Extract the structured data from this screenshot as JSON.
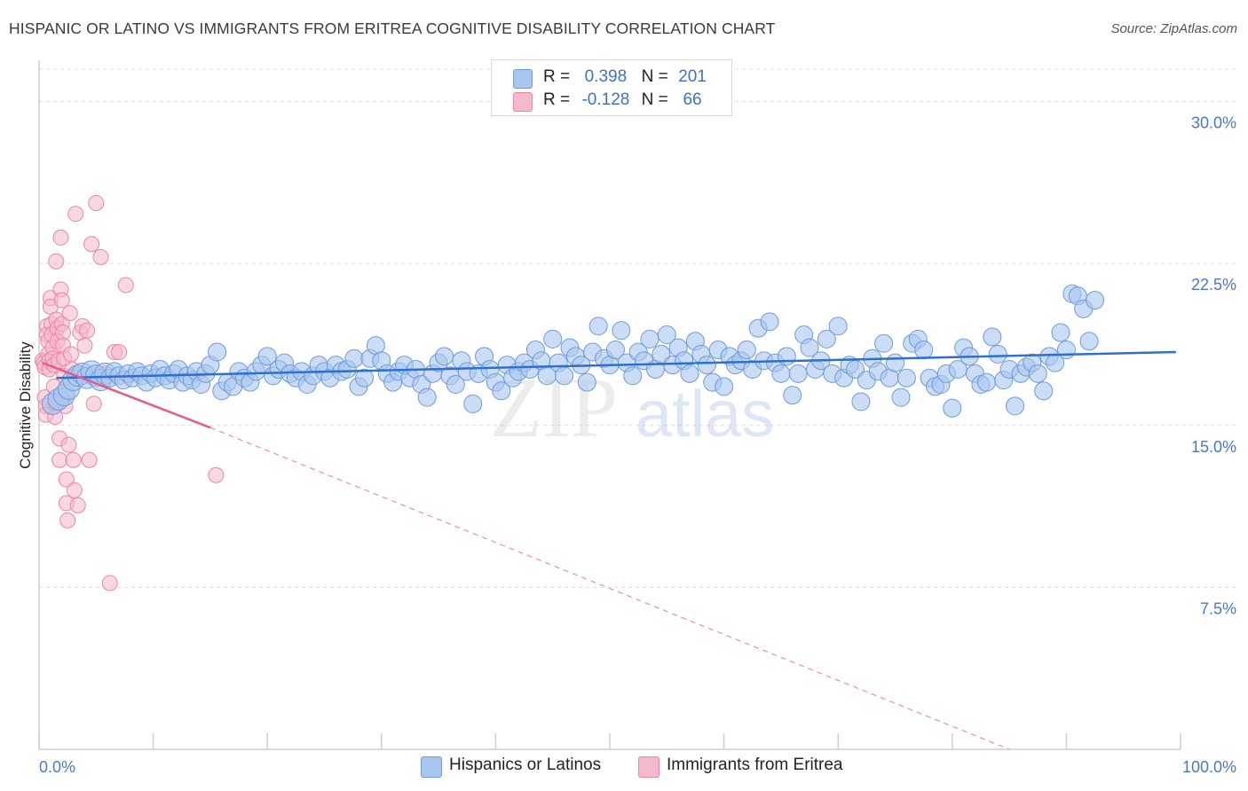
{
  "title": "HISPANIC OR LATINO VS IMMIGRANTS FROM ERITREA COGNITIVE DISABILITY CORRELATION CHART",
  "source": "Source: ZipAtlas.com",
  "watermark": {
    "zip": "ZIP",
    "atlas": "atlas"
  },
  "legend_stats": {
    "r_label": "R =",
    "n_label": "N =",
    "series1": {
      "r": "0.398",
      "n": "201",
      "color": "#a9c6f0"
    },
    "series2": {
      "r": "-0.128",
      "n": "66",
      "color": "#f6b8cc"
    }
  },
  "legend_bottom": {
    "series1": "Hispanics or Latinos",
    "series2": "Immigrants from Eritrea"
  },
  "colors": {
    "blue_fill": "#a9c6f0",
    "blue_stroke": "#6f9ad9",
    "blue_line": "#2e6fd2",
    "pink_fill": "#f6b8cc",
    "pink_stroke": "#ec86a6",
    "pink_line": "#e45c8a",
    "grid": "#dcdcdc",
    "tick_label": "#4a78c9"
  },
  "chart_data": {
    "type": "scatter",
    "title": "HISPANIC OR LATINO VS IMMIGRANTS FROM ERITREA COGNITIVE DISABILITY CORRELATION CHART",
    "xlabel": "",
    "ylabel": "Cognitive Disability",
    "xlim": [
      0,
      100
    ],
    "ylim": [
      0,
      31.5
    ],
    "x_tick_labels": [
      "0.0%",
      "100.0%"
    ],
    "y_ticks": [
      7.5,
      15.0,
      22.5,
      30.0
    ],
    "y_tick_labels": [
      "7.5%",
      "15.0%",
      "22.5%",
      "30.0%"
    ],
    "grid": true,
    "legend_position": "top-center",
    "series": [
      {
        "name": "Hispanics or Latinos",
        "r": 0.398,
        "n": 201,
        "trend": {
          "x": [
            1.5,
            99.6
          ],
          "y": [
            17.2,
            18.4
          ]
        },
        "points": [
          [
            1.2,
            16.0
          ],
          [
            1.7,
            16.2
          ],
          [
            2.2,
            16.4
          ],
          [
            2.6,
            16.7
          ],
          [
            3.0,
            17.1
          ],
          [
            3.4,
            17.3
          ],
          [
            3.8,
            17.4
          ],
          [
            4.2,
            17.2
          ],
          [
            4.6,
            17.5
          ],
          [
            5.0,
            17.3
          ],
          [
            5.4,
            17.1
          ],
          [
            5.8,
            17.4
          ],
          [
            6.2,
            17.2
          ],
          [
            6.6,
            17.5
          ],
          [
            7.0,
            17.3
          ],
          [
            7.4,
            17.1
          ],
          [
            7.8,
            17.4
          ],
          [
            8.2,
            17.2
          ],
          [
            8.6,
            17.5
          ],
          [
            9.0,
            17.3
          ],
          [
            9.4,
            17.0
          ],
          [
            9.8,
            17.4
          ],
          [
            10.2,
            17.2
          ],
          [
            10.6,
            17.6
          ],
          [
            11.0,
            17.3
          ],
          [
            11.4,
            17.1
          ],
          [
            11.8,
            17.4
          ],
          [
            12.2,
            17.6
          ],
          [
            12.6,
            17.0
          ],
          [
            13.0,
            17.3
          ],
          [
            13.4,
            17.1
          ],
          [
            13.8,
            17.5
          ],
          [
            14.2,
            16.9
          ],
          [
            14.6,
            17.4
          ],
          [
            15.0,
            17.8
          ],
          [
            15.6,
            18.4
          ],
          [
            16.0,
            16.6
          ],
          [
            16.5,
            17.0
          ],
          [
            17.0,
            16.8
          ],
          [
            17.5,
            17.5
          ],
          [
            18.0,
            17.2
          ],
          [
            18.5,
            17.0
          ],
          [
            19.0,
            17.5
          ],
          [
            19.5,
            17.8
          ],
          [
            20.0,
            18.2
          ],
          [
            20.5,
            17.3
          ],
          [
            21.0,
            17.6
          ],
          [
            21.5,
            17.9
          ],
          [
            22.0,
            17.4
          ],
          [
            22.5,
            17.2
          ],
          [
            23.0,
            17.5
          ],
          [
            23.5,
            16.9
          ],
          [
            24.0,
            17.3
          ],
          [
            24.5,
            17.8
          ],
          [
            25.0,
            17.5
          ],
          [
            25.5,
            17.2
          ],
          [
            26.0,
            17.8
          ],
          [
            26.5,
            17.5
          ],
          [
            27.0,
            17.6
          ],
          [
            27.6,
            18.1
          ],
          [
            28.0,
            16.8
          ],
          [
            28.5,
            17.2
          ],
          [
            29.0,
            18.1
          ],
          [
            29.5,
            18.7
          ],
          [
            30.0,
            18.0
          ],
          [
            30.5,
            17.4
          ],
          [
            31.0,
            17.0
          ],
          [
            31.5,
            17.5
          ],
          [
            32.0,
            17.8
          ],
          [
            32.5,
            17.2
          ],
          [
            33.0,
            17.6
          ],
          [
            33.5,
            16.9
          ],
          [
            34.0,
            16.3
          ],
          [
            34.5,
            17.4
          ],
          [
            35.0,
            17.9
          ],
          [
            35.5,
            18.2
          ],
          [
            36.0,
            17.3
          ],
          [
            36.5,
            16.9
          ],
          [
            37.0,
            18.0
          ],
          [
            37.5,
            17.5
          ],
          [
            38.0,
            16.0
          ],
          [
            38.5,
            17.4
          ],
          [
            39.0,
            18.2
          ],
          [
            39.5,
            17.6
          ],
          [
            40.0,
            17.0
          ],
          [
            40.5,
            16.6
          ],
          [
            41.0,
            17.8
          ],
          [
            41.5,
            17.2
          ],
          [
            42.0,
            17.5
          ],
          [
            42.5,
            17.9
          ],
          [
            43.0,
            17.6
          ],
          [
            43.5,
            18.5
          ],
          [
            44.0,
            18.0
          ],
          [
            44.5,
            17.3
          ],
          [
            45.0,
            19.0
          ],
          [
            45.5,
            17.9
          ],
          [
            46.0,
            17.3
          ],
          [
            46.5,
            18.6
          ],
          [
            47.0,
            18.2
          ],
          [
            47.5,
            17.8
          ],
          [
            48.0,
            17.0
          ],
          [
            48.5,
            18.4
          ],
          [
            49.0,
            19.6
          ],
          [
            49.5,
            18.1
          ],
          [
            50.0,
            17.8
          ],
          [
            50.5,
            18.5
          ],
          [
            51.0,
            19.4
          ],
          [
            51.5,
            17.9
          ],
          [
            52.0,
            17.3
          ],
          [
            52.5,
            18.4
          ],
          [
            53.0,
            18.0
          ],
          [
            53.5,
            19.0
          ],
          [
            54.0,
            17.6
          ],
          [
            54.5,
            18.3
          ],
          [
            55.0,
            19.2
          ],
          [
            55.5,
            17.8
          ],
          [
            56.0,
            18.6
          ],
          [
            56.5,
            18.0
          ],
          [
            57.0,
            17.4
          ],
          [
            57.5,
            18.9
          ],
          [
            58.0,
            18.3
          ],
          [
            58.5,
            17.8
          ],
          [
            59.0,
            17.0
          ],
          [
            59.5,
            18.5
          ],
          [
            60.0,
            16.8
          ],
          [
            60.5,
            18.2
          ],
          [
            61.0,
            17.8
          ],
          [
            61.5,
            18.0
          ],
          [
            62.0,
            18.5
          ],
          [
            62.5,
            17.6
          ],
          [
            63.0,
            19.5
          ],
          [
            63.5,
            18.0
          ],
          [
            64.0,
            19.8
          ],
          [
            64.5,
            17.9
          ],
          [
            65.0,
            17.4
          ],
          [
            65.5,
            18.2
          ],
          [
            66.0,
            16.4
          ],
          [
            66.5,
            17.4
          ],
          [
            67.0,
            19.2
          ],
          [
            67.5,
            18.6
          ],
          [
            68.0,
            17.6
          ],
          [
            68.5,
            18.0
          ],
          [
            69.0,
            19.0
          ],
          [
            69.5,
            17.4
          ],
          [
            70.0,
            19.6
          ],
          [
            70.5,
            17.2
          ],
          [
            71.0,
            17.8
          ],
          [
            71.5,
            17.6
          ],
          [
            72.0,
            16.1
          ],
          [
            72.5,
            17.1
          ],
          [
            73.0,
            18.1
          ],
          [
            73.5,
            17.5
          ],
          [
            74.0,
            18.8
          ],
          [
            74.5,
            17.2
          ],
          [
            75.0,
            17.9
          ],
          [
            75.5,
            16.3
          ],
          [
            76.0,
            17.2
          ],
          [
            76.5,
            18.8
          ],
          [
            77.0,
            19.0
          ],
          [
            77.5,
            18.5
          ],
          [
            78.0,
            17.2
          ],
          [
            78.5,
            16.8
          ],
          [
            79.0,
            16.9
          ],
          [
            79.5,
            17.4
          ],
          [
            80.0,
            15.8
          ],
          [
            80.5,
            17.6
          ],
          [
            81.0,
            18.6
          ],
          [
            81.5,
            18.2
          ],
          [
            82.0,
            17.4
          ],
          [
            82.5,
            16.9
          ],
          [
            83.0,
            17.0
          ],
          [
            83.5,
            19.1
          ],
          [
            84.0,
            18.3
          ],
          [
            84.5,
            17.1
          ],
          [
            85.0,
            17.6
          ],
          [
            85.5,
            15.9
          ],
          [
            86.0,
            17.4
          ],
          [
            86.5,
            17.7
          ],
          [
            87.0,
            17.9
          ],
          [
            87.5,
            17.4
          ],
          [
            88.0,
            16.6
          ],
          [
            88.5,
            18.2
          ],
          [
            89.0,
            17.9
          ],
          [
            89.5,
            19.3
          ],
          [
            90.0,
            18.5
          ],
          [
            90.5,
            21.1
          ],
          [
            91.0,
            21.0
          ],
          [
            91.5,
            20.4
          ],
          [
            92.0,
            18.9
          ],
          [
            92.5,
            20.8
          ]
        ]
      },
      {
        "name": "Immigrants from Eritrea",
        "r": -0.128,
        "n": 66,
        "trend": {
          "x": [
            0.3,
            15.0
          ],
          "y": [
            17.9,
            14.9
          ]
        },
        "trend_dashed": {
          "x": [
            15.0,
            85.0
          ],
          "y": [
            14.9,
            0.0
          ]
        },
        "points": [
          [
            0.3,
            18.0
          ],
          [
            0.4,
            17.9
          ],
          [
            0.5,
            17.7
          ],
          [
            0.5,
            16.3
          ],
          [
            0.6,
            15.9
          ],
          [
            0.6,
            15.5
          ],
          [
            0.7,
            19.6
          ],
          [
            0.7,
            19.2
          ],
          [
            0.8,
            18.9
          ],
          [
            0.8,
            18.3
          ],
          [
            0.9,
            18.0
          ],
          [
            0.9,
            17.6
          ],
          [
            1.0,
            20.9
          ],
          [
            1.0,
            20.5
          ],
          [
            1.1,
            19.7
          ],
          [
            1.1,
            19.2
          ],
          [
            1.2,
            18.6
          ],
          [
            1.2,
            18.1
          ],
          [
            1.3,
            17.8
          ],
          [
            1.3,
            16.8
          ],
          [
            1.4,
            16.0
          ],
          [
            1.4,
            15.4
          ],
          [
            1.5,
            22.6
          ],
          [
            1.5,
            19.9
          ],
          [
            1.6,
            19.5
          ],
          [
            1.6,
            18.9
          ],
          [
            1.7,
            18.0
          ],
          [
            1.7,
            16.1
          ],
          [
            1.8,
            14.4
          ],
          [
            1.8,
            13.4
          ],
          [
            1.9,
            23.7
          ],
          [
            1.9,
            21.3
          ],
          [
            2.0,
            20.8
          ],
          [
            2.0,
            19.7
          ],
          [
            2.1,
            19.3
          ],
          [
            2.1,
            18.7
          ],
          [
            2.2,
            18.1
          ],
          [
            2.2,
            17.3
          ],
          [
            2.3,
            16.4
          ],
          [
            2.3,
            15.9
          ],
          [
            2.4,
            12.5
          ],
          [
            2.4,
            11.4
          ],
          [
            2.5,
            10.6
          ],
          [
            2.6,
            14.1
          ],
          [
            2.7,
            20.2
          ],
          [
            2.8,
            18.3
          ],
          [
            2.9,
            17.6
          ],
          [
            3.0,
            13.4
          ],
          [
            3.1,
            12.0
          ],
          [
            3.2,
            24.8
          ],
          [
            3.4,
            11.3
          ],
          [
            3.6,
            19.3
          ],
          [
            3.8,
            19.6
          ],
          [
            4.0,
            18.7
          ],
          [
            4.2,
            19.4
          ],
          [
            4.4,
            13.4
          ],
          [
            4.6,
            23.4
          ],
          [
            4.8,
            16.0
          ],
          [
            5.0,
            25.3
          ],
          [
            5.4,
            22.8
          ],
          [
            5.8,
            17.4
          ],
          [
            6.2,
            7.7
          ],
          [
            6.6,
            18.4
          ],
          [
            7.0,
            18.4
          ],
          [
            7.6,
            21.5
          ],
          [
            15.5,
            12.7
          ]
        ]
      }
    ]
  }
}
